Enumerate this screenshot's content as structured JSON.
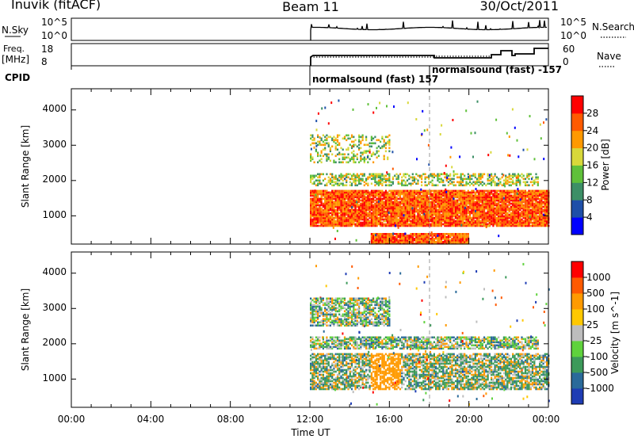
{
  "header": {
    "station": "Inuvik (fitACF)",
    "beam": "Beam 11",
    "date": "30/Oct/2011"
  },
  "top_panels": {
    "nsky_label": "N.Sky",
    "nsky_ticks": [
      "10^5",
      "10^0"
    ],
    "nsearch_ticks": [
      "10^5",
      "10^0"
    ],
    "nsearch_label": "N.Search",
    "freq_label": "Freq.",
    "freq_unit": "[MHz]",
    "freq_ticks": [
      "18",
      "8"
    ],
    "nave_ticks": [
      "60",
      "0"
    ],
    "nave_label": "Nave",
    "cpid_label": "CPID",
    "cpid_entries": [
      {
        "label": "normalsound (fast) 157",
        "start_hour": 12.0
      },
      {
        "label": "normalsound (fast) -157",
        "start_hour": 18.0
      }
    ]
  },
  "time_axis": {
    "title": "Time UT",
    "ticks": [
      "00:00",
      "04:00",
      "08:00",
      "12:00",
      "16:00",
      "20:00",
      "00:00"
    ]
  },
  "colors": {
    "power": [
      "#0000ff",
      "#1e4fa8",
      "#3c8f66",
      "#5fc03a",
      "#d8d83a",
      "#ff9900",
      "#ff5a00",
      "#ff0000"
    ],
    "velocity": [
      "#ff0000",
      "#ff5a00",
      "#ff9a00",
      "#ffc800",
      "#bdbdbd",
      "#5fd23c",
      "#3c9a5a",
      "#2a6a9a",
      "#1e3cb4"
    ]
  },
  "chart_data": [
    {
      "type": "heatmap",
      "name": "power",
      "ylabel": "Slant Range [km]",
      "yticks": [
        "1000",
        "2000",
        "3000",
        "4000"
      ],
      "ylim": [
        200,
        4600
      ],
      "xlim_hours": [
        0,
        24
      ],
      "data_start_hour": 12.0,
      "colorbar_label": "Power [dB]",
      "colorbar_ticks": [
        "4",
        "8",
        "12",
        "16",
        "20",
        "24",
        "28"
      ],
      "bands": [
        {
          "range_km": [
            700,
            1700
          ],
          "hours": [
            12.0,
            24.0
          ],
          "level": "strong"
        },
        {
          "range_km": [
            1850,
            2200
          ],
          "hours": [
            12.0,
            23.5
          ],
          "level": "moderate"
        },
        {
          "range_km": [
            2500,
            3300
          ],
          "hours": [
            12.0,
            16.0
          ],
          "level": "patchy"
        },
        {
          "range_km": [
            200,
            500
          ],
          "hours": [
            15.0,
            20.0
          ],
          "level": "strong"
        }
      ]
    },
    {
      "type": "heatmap",
      "name": "velocity",
      "ylabel": "Slant Range [km]",
      "yticks": [
        "1000",
        "2000",
        "3000",
        "4000"
      ],
      "ylim": [
        200,
        4600
      ],
      "xlim_hours": [
        0,
        24
      ],
      "data_start_hour": 12.0,
      "colorbar_label": "Velocity [m s^-1]",
      "colorbar_ticks": [
        "1000",
        "500",
        "100",
        "25",
        "-25",
        "-100",
        "-500",
        "-1000"
      ],
      "bands": [
        {
          "range_km": [
            700,
            1700
          ],
          "hours": [
            12.0,
            24.0
          ],
          "level": "mixed"
        },
        {
          "range_km": [
            1850,
            2200
          ],
          "hours": [
            12.0,
            23.5
          ],
          "level": "mixed"
        },
        {
          "range_km": [
            2500,
            3300
          ],
          "hours": [
            12.0,
            16.0
          ],
          "level": "mixed"
        }
      ]
    }
  ]
}
